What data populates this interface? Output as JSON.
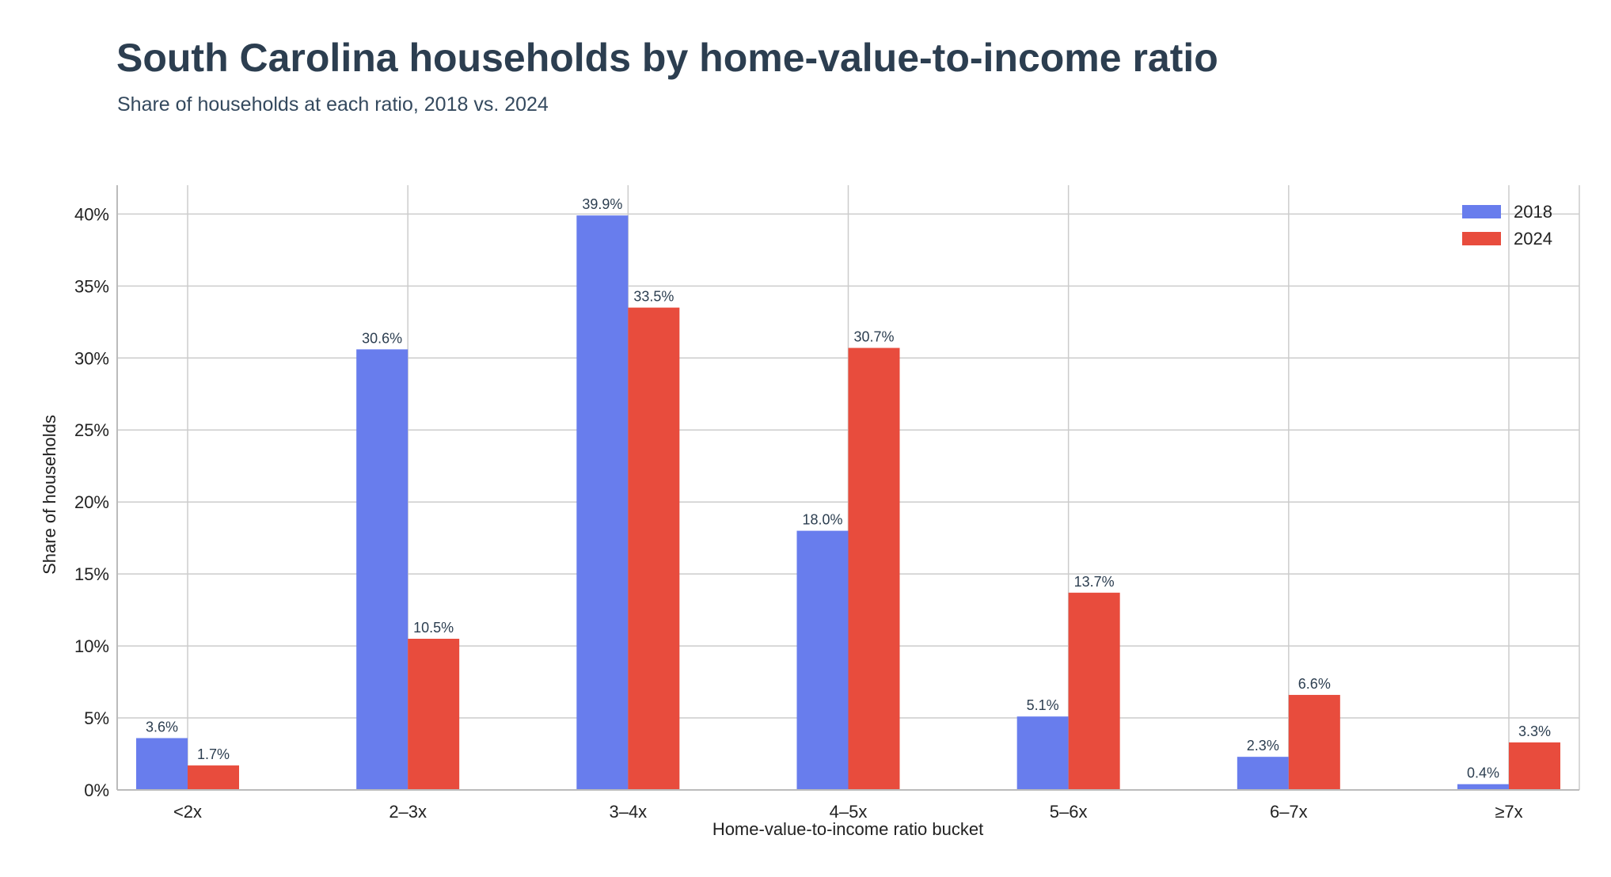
{
  "title": "South Carolina households by home-value-to-income ratio",
  "subtitle": "Share of households at each ratio, 2018 vs. 2024",
  "chart_data": {
    "type": "bar",
    "categories": [
      "<2x",
      "2–3x",
      "3–4x",
      "4–5x",
      "5–6x",
      "6–7x",
      "≥7x"
    ],
    "series": [
      {
        "name": "2018",
        "color": "#687ded",
        "values": [
          3.6,
          30.6,
          39.9,
          18.0,
          5.1,
          2.3,
          0.4
        ],
        "labels": [
          "3.6%",
          "30.6%",
          "39.9%",
          "18.0%",
          "5.1%",
          "2.3%",
          "0.4%"
        ]
      },
      {
        "name": "2024",
        "color": "#e84c3d",
        "values": [
          1.7,
          10.5,
          33.5,
          30.7,
          13.7,
          6.6,
          3.3
        ],
        "labels": [
          "1.7%",
          "10.5%",
          "33.5%",
          "30.7%",
          "13.7%",
          "6.6%",
          "3.3%"
        ]
      }
    ],
    "xlabel": "Home-value-to-income ratio bucket",
    "ylabel": "Share of households",
    "ylim": [
      0,
      42
    ],
    "yticks": [
      0,
      5,
      10,
      15,
      20,
      25,
      30,
      35,
      40
    ],
    "ytick_labels": [
      "0%",
      "5%",
      "10%",
      "15%",
      "20%",
      "25%",
      "30%",
      "35%",
      "40%"
    ],
    "grid": true,
    "legend_position": "top-right"
  }
}
